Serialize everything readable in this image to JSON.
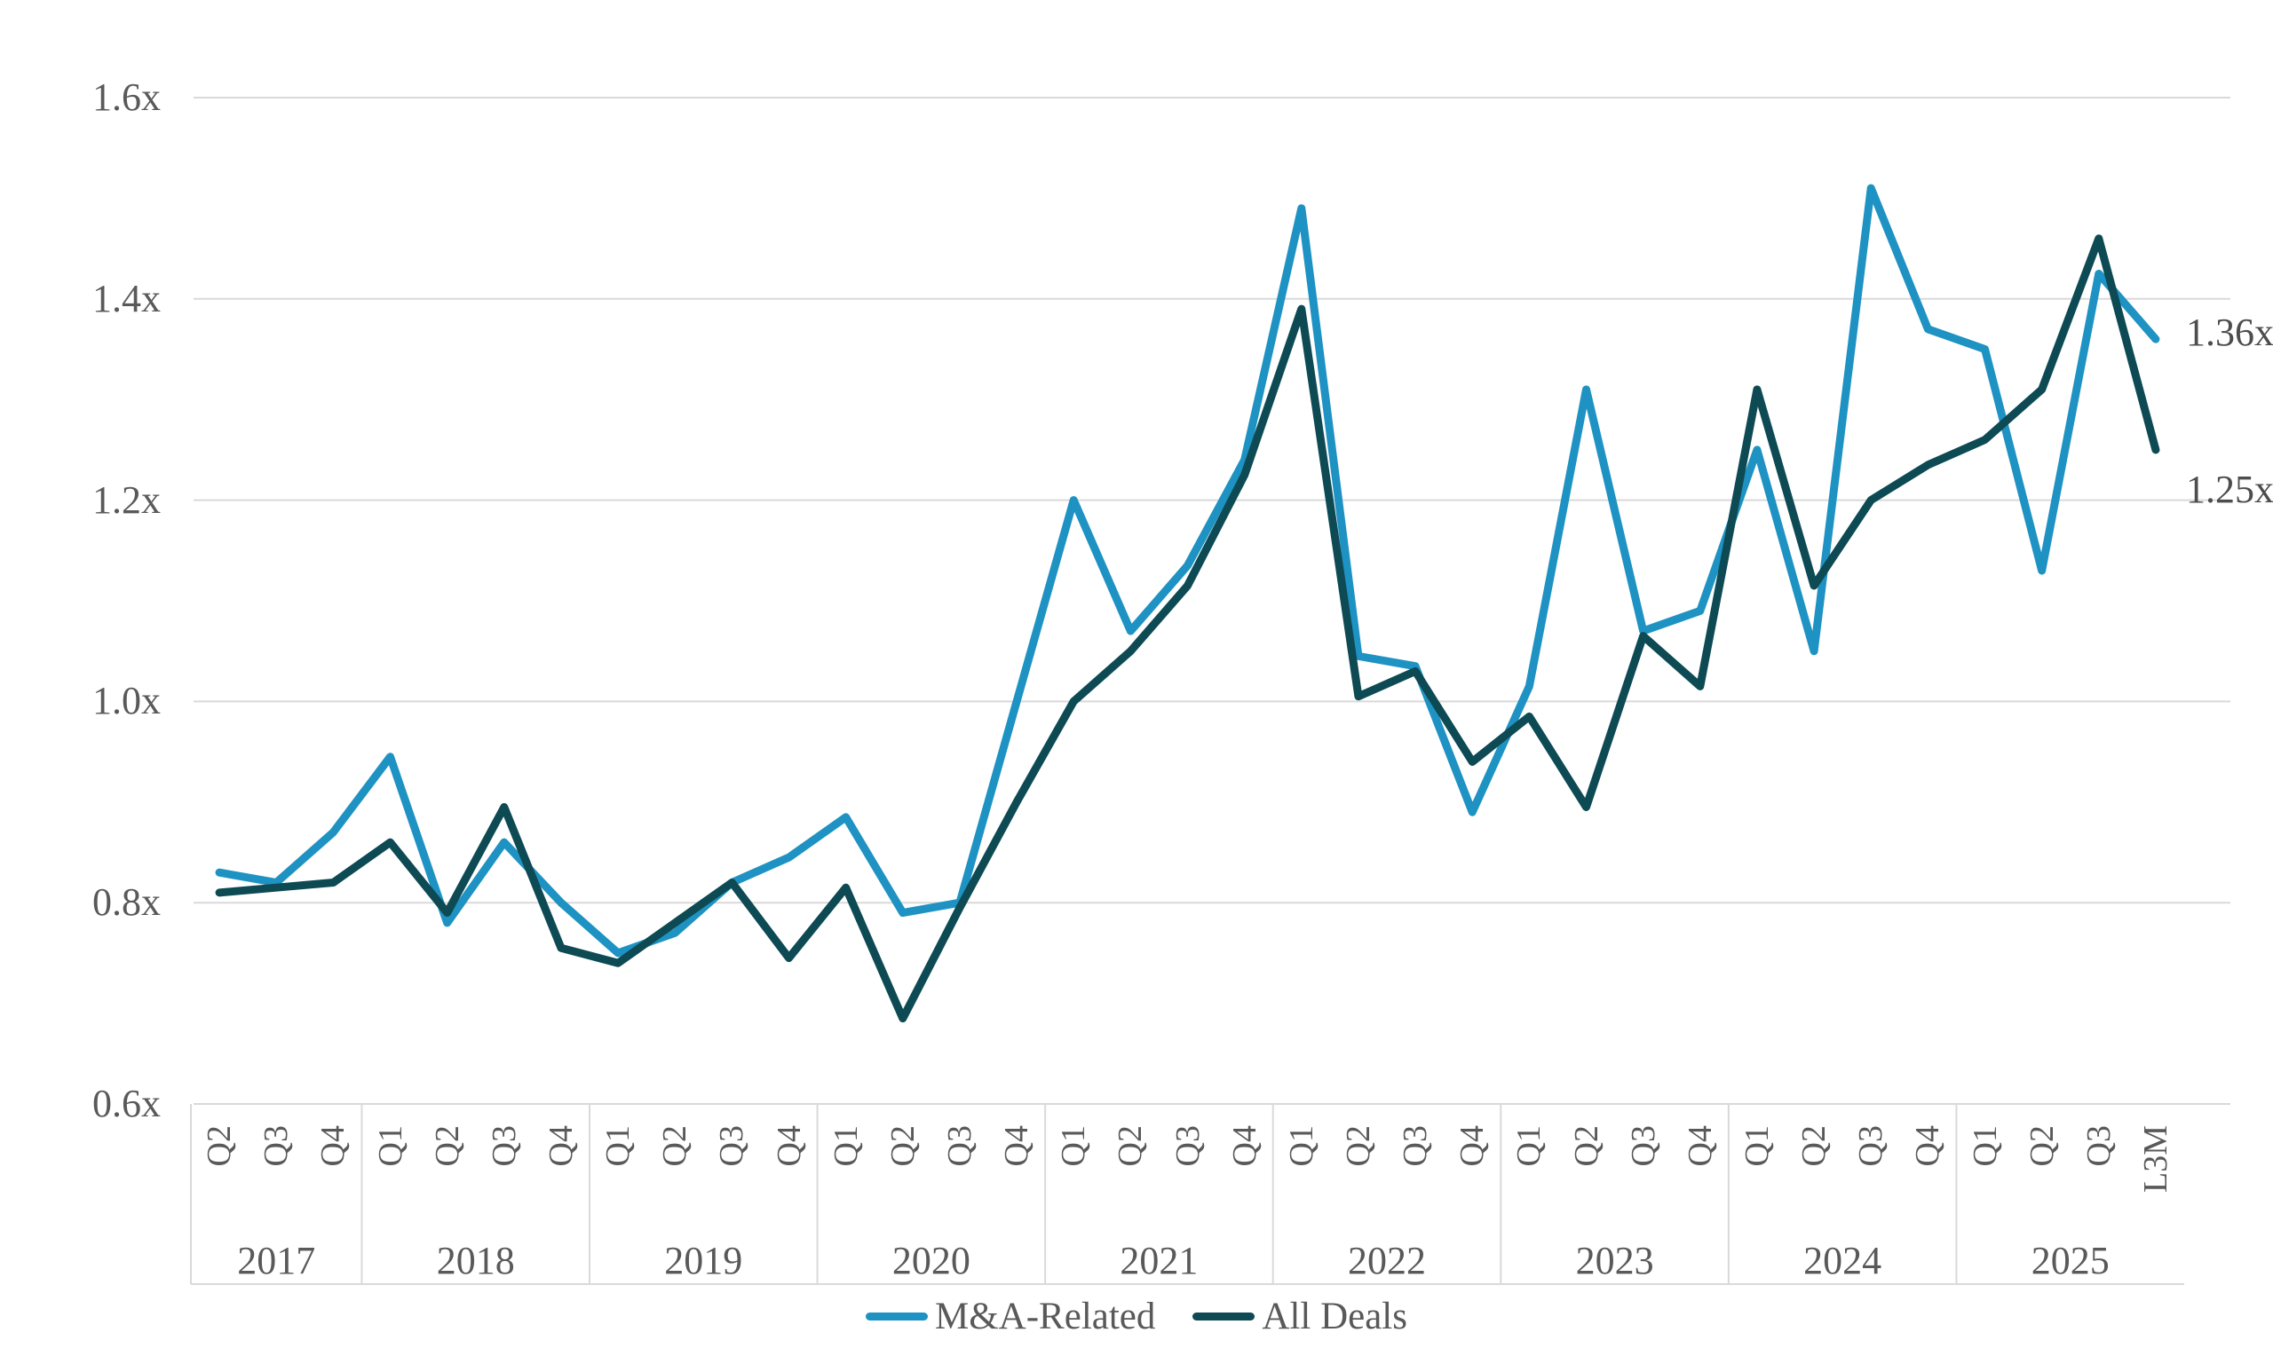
{
  "page": {
    "background": "#FFFFFF"
  },
  "chart_data": {
    "type": "line",
    "title": "",
    "xlabel": "",
    "ylabel": "",
    "grid": true,
    "legend_position": "bottom-center",
    "text_color": "#595959",
    "gridline_color": "#D9D9D9",
    "y_axis": {
      "min": 0.6,
      "max": 1.6,
      "step": 0.2,
      "suffix": "x",
      "tick_labels": [
        "1.6x",
        "1.4x",
        "1.2x",
        "1.0x",
        "0.8x",
        "0.6x"
      ]
    },
    "x_axis": {
      "years": [
        {
          "label": "2017",
          "quarters": [
            "Q2",
            "Q3",
            "Q4"
          ]
        },
        {
          "label": "2018",
          "quarters": [
            "Q1",
            "Q2",
            "Q3",
            "Q4"
          ]
        },
        {
          "label": "2019",
          "quarters": [
            "Q1",
            "Q2",
            "Q3",
            "Q4"
          ]
        },
        {
          "label": "2020",
          "quarters": [
            "Q1",
            "Q2",
            "Q3",
            "Q4"
          ]
        },
        {
          "label": "2021",
          "quarters": [
            "Q1",
            "Q2",
            "Q3",
            "Q4"
          ]
        },
        {
          "label": "2022",
          "quarters": [
            "Q1",
            "Q2",
            "Q3",
            "Q4"
          ]
        },
        {
          "label": "2023",
          "quarters": [
            "Q1",
            "Q2",
            "Q3",
            "Q4"
          ]
        },
        {
          "label": "2024",
          "quarters": [
            "Q1",
            "Q2",
            "Q3",
            "Q4"
          ]
        },
        {
          "label": "2025",
          "quarters": [
            "Q1",
            "Q2",
            "Q3",
            "L3M"
          ]
        }
      ]
    },
    "series": [
      {
        "name": "M&A-Related",
        "color": "#1E92C2",
        "end_label": "1.36x",
        "values": [
          0.83,
          0.82,
          0.87,
          0.945,
          0.78,
          0.86,
          0.8,
          0.75,
          0.77,
          0.82,
          0.845,
          0.885,
          0.79,
          0.8,
          1.0,
          1.2,
          1.07,
          1.135,
          1.24,
          1.49,
          1.045,
          1.035,
          0.89,
          1.015,
          1.31,
          1.07,
          1.09,
          1.25,
          1.05,
          1.51,
          1.37,
          1.35,
          1.13,
          1.425,
          1.36
        ]
      },
      {
        "name": "All Deals",
        "color": "#0D4A54",
        "end_label": "1.25x",
        "values": [
          0.81,
          0.815,
          0.82,
          0.86,
          0.79,
          0.895,
          0.755,
          0.74,
          0.78,
          0.82,
          0.745,
          0.815,
          0.685,
          0.795,
          0.9,
          1.0,
          1.05,
          1.115,
          1.225,
          1.39,
          1.005,
          1.03,
          0.94,
          0.985,
          0.895,
          1.065,
          1.015,
          1.31,
          1.115,
          1.2,
          1.235,
          1.26,
          1.31,
          1.46,
          1.25
        ]
      }
    ]
  }
}
